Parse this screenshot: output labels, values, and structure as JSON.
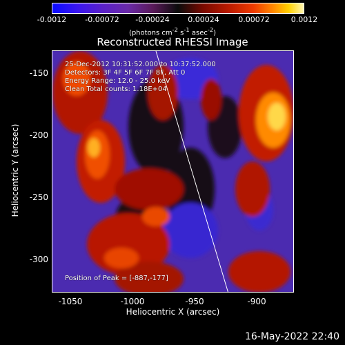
{
  "colorbar": {
    "ticks": [
      "-0.0012",
      "-0.00072",
      "-0.00024",
      "0.00024",
      "0.00072",
      "0.0012"
    ],
    "units_prefix": "(photons cm",
    "units_exp1": "-2",
    "units_mid": " s",
    "units_exp2": "-1",
    "units_mid2": " asec",
    "units_exp3": "-2",
    "units_suffix": ")"
  },
  "title": "Reconstructed RHESSI Image",
  "info": {
    "line1": "25-Dec-2012 10:31:52.000 to 10:37:52.000",
    "line2": "Detectors: 3F 4F 5F 6F 7F 8F, Att 0",
    "line3": "Energy Range: 12.0 - 25.0 keV",
    "line4": "Clean    Total counts: 1.18E+04"
  },
  "peak_label": "Position of Peak = [-887,-177]",
  "axes": {
    "xlabel": "Heliocentric X (arcsec)",
    "ylabel": "Heliocentric Y (arcsec)",
    "xticks": [
      "-1050",
      "-1000",
      "-950",
      "-900"
    ],
    "yticks": [
      "-150",
      "-200",
      "-250",
      "-300"
    ]
  },
  "timestamp": "16-May-2022 22:40",
  "colors": {
    "background": "#000000",
    "negative": "#4b2bb0",
    "positive_hot": "#ffd24a",
    "limb_line": "#ffffff"
  }
}
